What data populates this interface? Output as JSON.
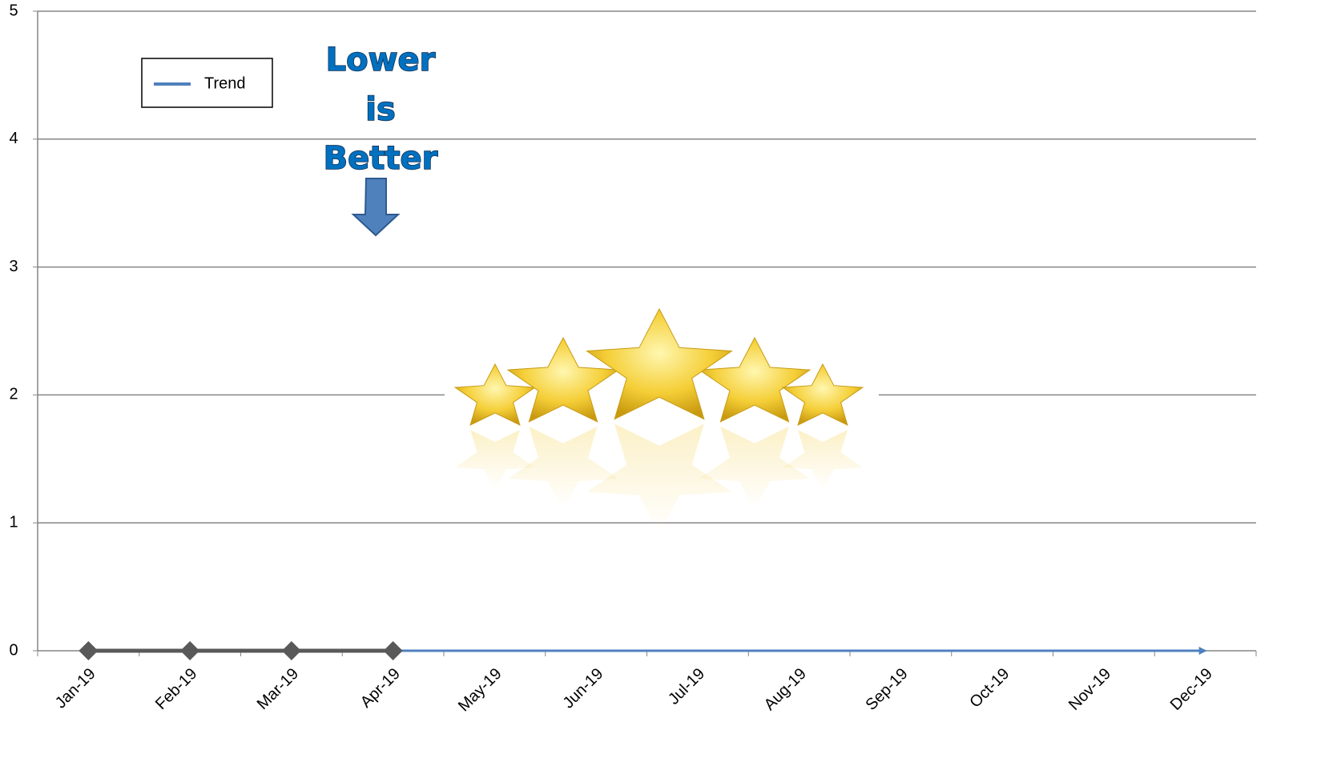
{
  "chart_data": {
    "type": "line",
    "categories": [
      "Jan-19",
      "Feb-19",
      "Mar-19",
      "Apr-19",
      "May-19",
      "Jun-19",
      "Jul-19",
      "Aug-19",
      "Sep-19",
      "Oct-19",
      "Nov-19",
      "Dec-19"
    ],
    "series": [
      {
        "color": "#595959",
        "values": [
          0,
          0,
          0,
          0,
          null,
          null,
          null,
          null,
          null,
          null,
          null,
          null
        ]
      },
      {
        "name": "Trend",
        "color": "#4f81bd",
        "values": [
          0,
          0,
          0,
          0,
          0,
          0,
          0,
          0,
          0,
          0,
          0,
          0
        ]
      }
    ],
    "ylim": [
      0,
      5
    ],
    "yticks": [
      0,
      1,
      2,
      3,
      4,
      5
    ],
    "grid": true,
    "legend": "top-left",
    "annotation": [
      "Lower",
      "is",
      "Better"
    ]
  }
}
